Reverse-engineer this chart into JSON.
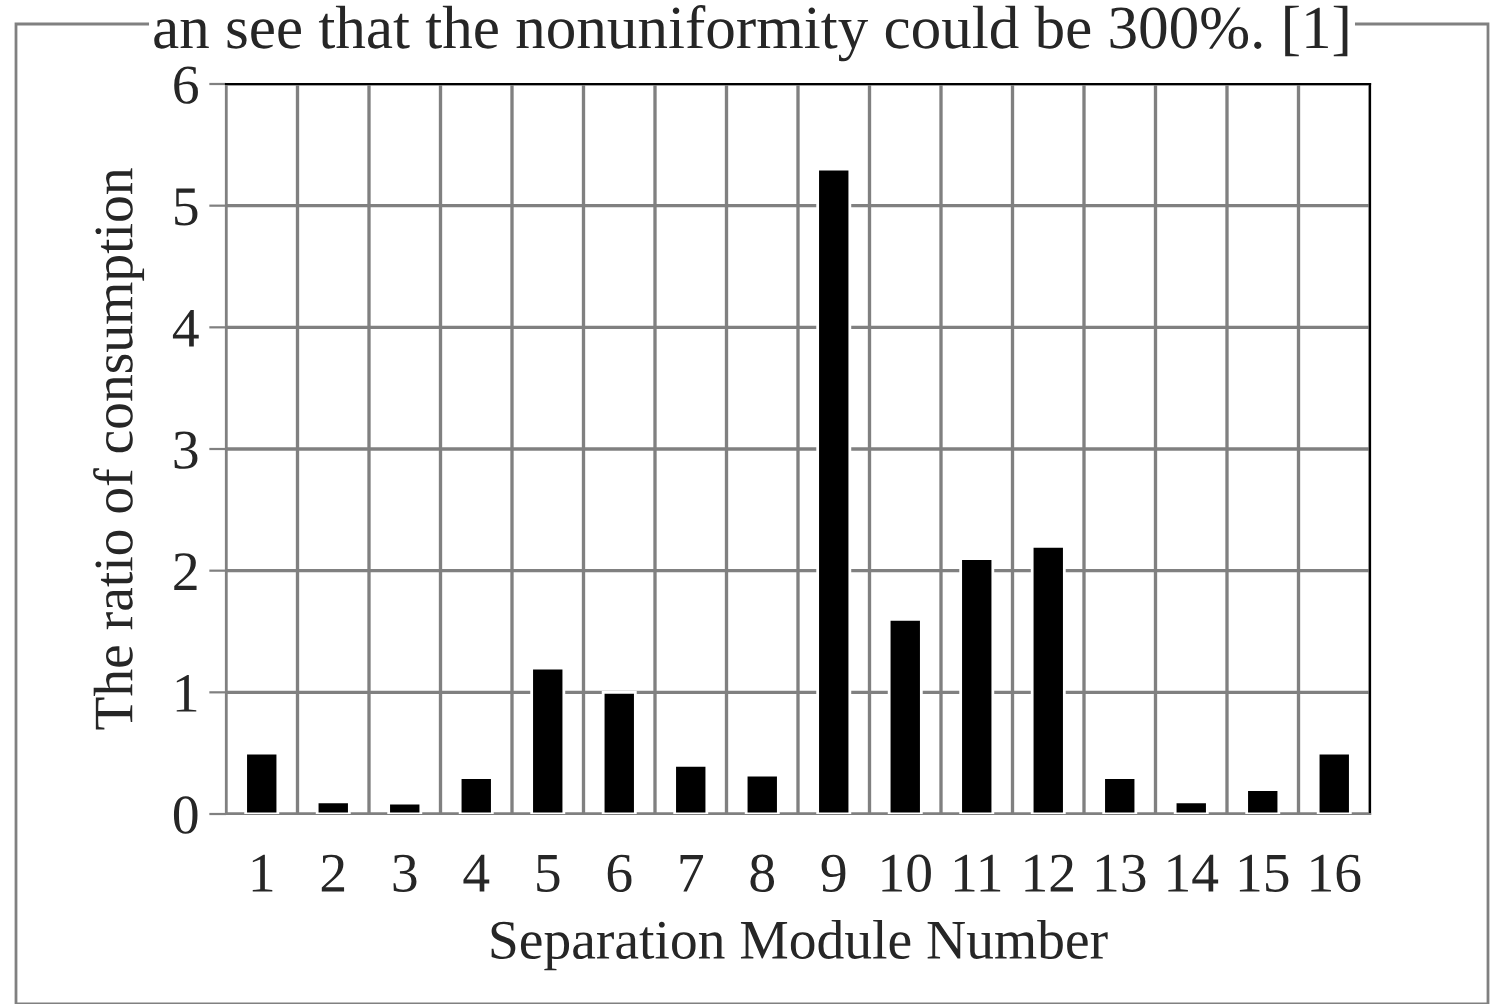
{
  "chart_data": {
    "type": "bar",
    "xlabel": "Separation Module Number",
    "ylabel": "The ratio of consumption",
    "annotations": [
      "an see that the nonuniformity could be 300%. [1]"
    ],
    "categories": [
      "1",
      "2",
      "3",
      "4",
      "5",
      "6",
      "7",
      "8",
      "9",
      "10",
      "11",
      "12",
      "13",
      "14",
      "15",
      "16"
    ],
    "values": [
      0.5,
      0.1,
      0.09,
      0.3,
      1.2,
      1.0,
      0.4,
      0.32,
      5.3,
      1.6,
      2.1,
      2.2,
      0.3,
      0.1,
      0.2,
      0.5
    ],
    "color": "#000000",
    "ylim": [
      0,
      6
    ],
    "yticks": [
      0,
      1,
      2,
      3,
      4,
      5,
      6
    ],
    "grid": true
  }
}
